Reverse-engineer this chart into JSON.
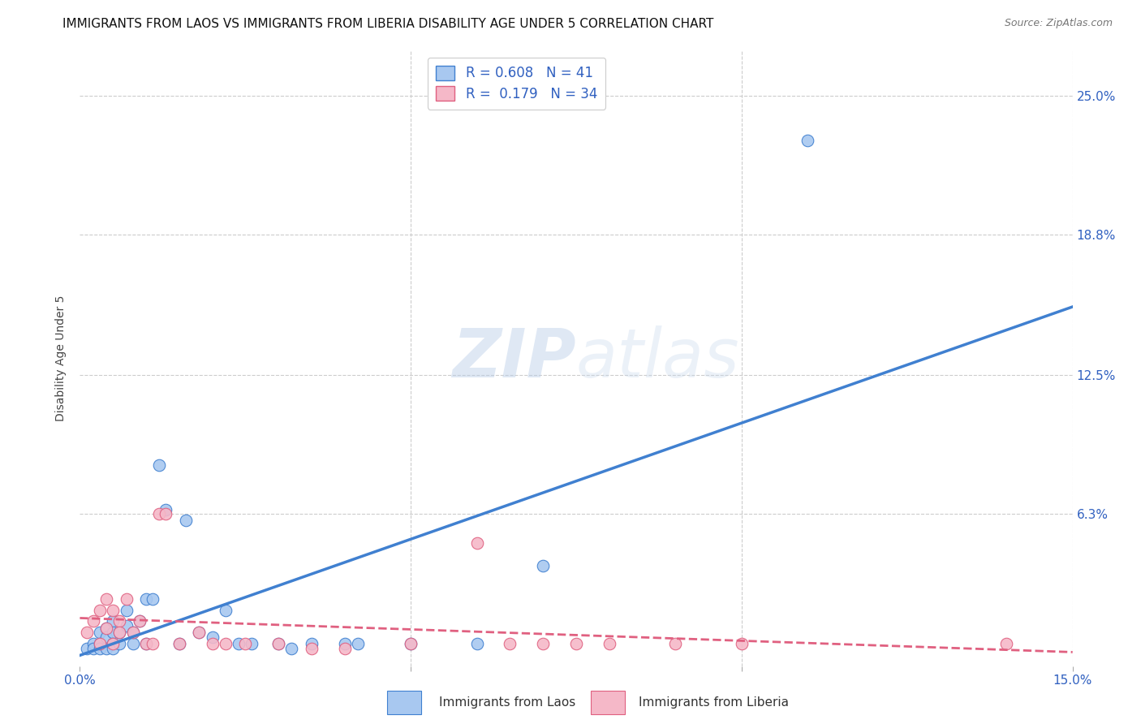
{
  "title": "IMMIGRANTS FROM LAOS VS IMMIGRANTS FROM LIBERIA DISABILITY AGE UNDER 5 CORRELATION CHART",
  "source": "Source: ZipAtlas.com",
  "ylabel": "Disability Age Under 5",
  "xlabel_laos": "Immigrants from Laos",
  "xlabel_liberia": "Immigrants from Liberia",
  "y_tick_positions_pct": [
    0.063,
    0.125,
    0.188,
    0.25
  ],
  "y_tick_labels_right": [
    "6.3%",
    "12.5%",
    "18.8%",
    "25.0%"
  ],
  "x_min": 0.0,
  "x_max": 0.15,
  "y_min": -0.005,
  "y_max": 0.27,
  "laos_color": "#A8C8F0",
  "liberia_color": "#F5B8C8",
  "laos_line_color": "#4080D0",
  "liberia_line_color": "#E06080",
  "watermark_zip": "ZIP",
  "watermark_atlas": "atlas",
  "R_laos": 0.608,
  "N_laos": 41,
  "R_liberia": 0.179,
  "N_liberia": 34,
  "laos_x": [
    0.001,
    0.002,
    0.002,
    0.003,
    0.003,
    0.003,
    0.004,
    0.004,
    0.004,
    0.005,
    0.005,
    0.005,
    0.005,
    0.006,
    0.006,
    0.007,
    0.007,
    0.008,
    0.008,
    0.009,
    0.01,
    0.01,
    0.011,
    0.012,
    0.013,
    0.015,
    0.016,
    0.018,
    0.02,
    0.022,
    0.024,
    0.026,
    0.03,
    0.032,
    0.035,
    0.04,
    0.042,
    0.05,
    0.06,
    0.07,
    0.11
  ],
  "laos_y": [
    0.003,
    0.005,
    0.003,
    0.01,
    0.005,
    0.003,
    0.012,
    0.008,
    0.003,
    0.015,
    0.01,
    0.005,
    0.003,
    0.01,
    0.005,
    0.013,
    0.02,
    0.005,
    0.01,
    0.015,
    0.025,
    0.005,
    0.025,
    0.085,
    0.065,
    0.005,
    0.06,
    0.01,
    0.008,
    0.02,
    0.005,
    0.005,
    0.005,
    0.003,
    0.005,
    0.005,
    0.005,
    0.005,
    0.005,
    0.04,
    0.23
  ],
  "liberia_x": [
    0.001,
    0.002,
    0.003,
    0.003,
    0.004,
    0.004,
    0.005,
    0.005,
    0.006,
    0.006,
    0.007,
    0.008,
    0.009,
    0.01,
    0.011,
    0.012,
    0.013,
    0.015,
    0.018,
    0.02,
    0.022,
    0.025,
    0.03,
    0.035,
    0.04,
    0.05,
    0.06,
    0.065,
    0.07,
    0.075,
    0.08,
    0.09,
    0.1,
    0.14
  ],
  "liberia_y": [
    0.01,
    0.015,
    0.02,
    0.005,
    0.025,
    0.012,
    0.02,
    0.005,
    0.015,
    0.01,
    0.025,
    0.01,
    0.015,
    0.005,
    0.005,
    0.063,
    0.063,
    0.005,
    0.01,
    0.005,
    0.005,
    0.005,
    0.005,
    0.003,
    0.003,
    0.005,
    0.05,
    0.005,
    0.005,
    0.005,
    0.005,
    0.005,
    0.005,
    0.005
  ],
  "grid_color": "#CCCCCC",
  "background_color": "#FFFFFF",
  "title_fontsize": 11,
  "axis_label_fontsize": 10,
  "tick_fontsize": 11,
  "legend_fontsize": 12,
  "marker_size": 110
}
